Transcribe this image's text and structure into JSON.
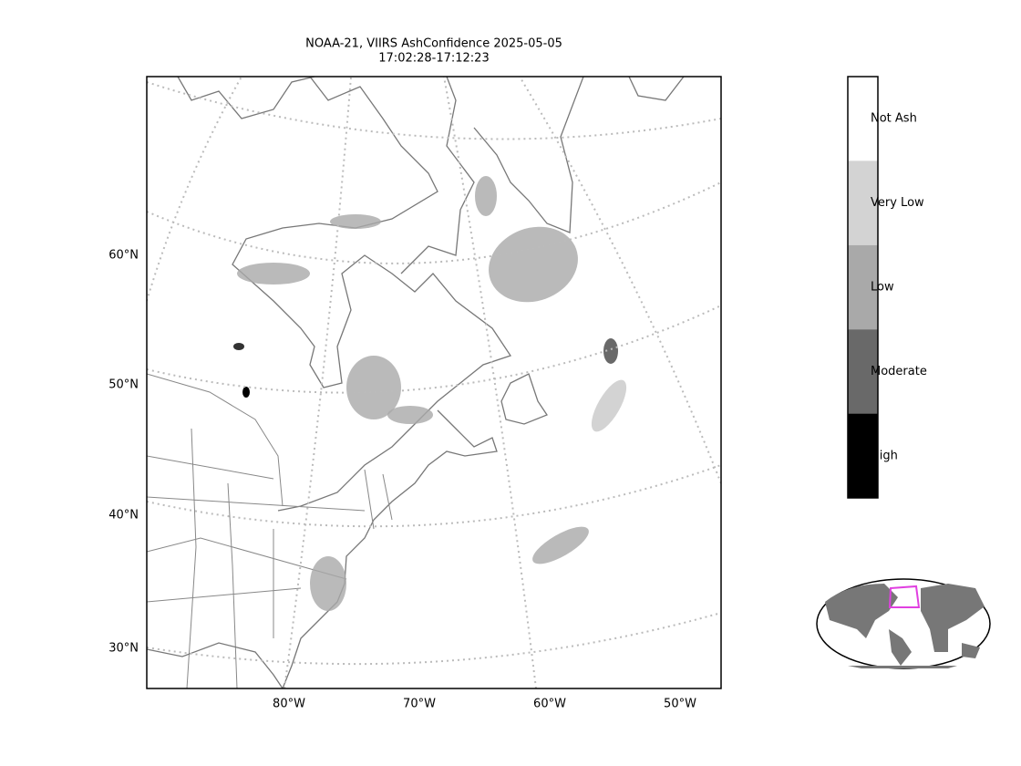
{
  "title": [
    "NOAA-21, VIIRS AshConfidence 2025-05-05",
    "17:02:28-17:12:23"
  ],
  "lat_labels": [
    "60°N",
    "50°N",
    "40°N",
    "30°N"
  ],
  "lon_labels": [
    "80°W",
    "70°W",
    "60°W",
    "50°W"
  ],
  "colorbar": {
    "categories": [
      {
        "label": "Not Ash",
        "color": "#ffffff"
      },
      {
        "label": "Very Low",
        "color": "#d3d3d3"
      },
      {
        "label": "Low",
        "color": "#a9a9a9"
      },
      {
        "label": "Moderate",
        "color": "#696969"
      },
      {
        "label": "High",
        "color": "#000000"
      }
    ]
  }
}
